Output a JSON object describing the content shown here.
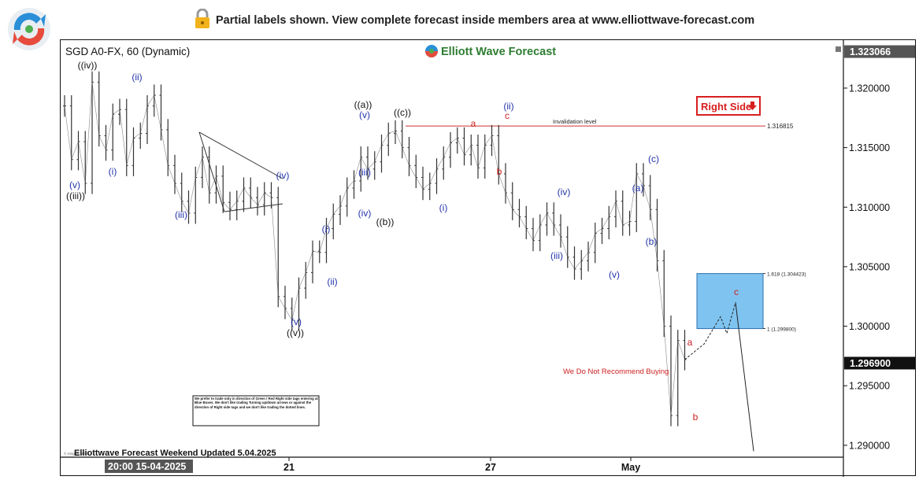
{
  "banner": {
    "text": "Partial labels shown. View complete forecast inside members area at www.elliottwave-forecast.com",
    "lock_icon": "lock-icon",
    "logo_icon": "elliottwave-logo-icon"
  },
  "chart_data": {
    "type": "line",
    "title": "SGD A0-FX, 60 (Dynamic)",
    "brand": "Elliott Wave Forecast",
    "footer": "Elliottwave Forecast Weekend Updated 5.04.2025",
    "copyright": "© eSignal, 2025",
    "ylim": [
      1.289,
      1.3235
    ],
    "y_ticks": [
      "1.320000",
      "1.315000",
      "1.310000",
      "1.305000",
      "1.300000",
      "1.295000",
      "1.290000"
    ],
    "y_tick_values": [
      1.32,
      1.315,
      1.31,
      1.305,
      1.3,
      1.295,
      1.29
    ],
    "current_price_top": "1.323066",
    "current_price": "1.296900",
    "current_price_value": 1.2969,
    "x_labels": [
      "20:00 15-04-2025",
      "21",
      "27",
      "May"
    ],
    "invalidation": {
      "label": "Invalidation level",
      "value_label": "1.316815",
      "value": 1.316815
    },
    "blue_box": {
      "top_label": "1.618 (1.304423)",
      "top": 1.304423,
      "bottom_label": "1 (1.299800)",
      "bottom": 1.2998
    },
    "right_side": "Right Side",
    "note_red": "We Do Not Recommend Buying",
    "disclaimer": "We prefer to trade only in direction of Green / Red Right side tags entering at Blue Boxes. We don't like trading Turning up/down arrows or against the direction of Right side tags and we don't like trading the dotted lines.",
    "series": [
      {
        "values": [
          1.3185,
          1.314,
          1.3155,
          1.312,
          1.3205,
          1.316,
          1.3148,
          1.3178,
          1.3182,
          1.3135,
          1.3158,
          1.3162,
          1.3185,
          1.3194,
          1.3165,
          1.3135,
          1.312,
          1.3105,
          1.3095,
          1.3125,
          1.3142,
          1.3112,
          1.3126,
          1.3104,
          1.3098,
          1.3105,
          1.3116,
          1.3108,
          1.3102,
          1.3112,
          1.3108,
          1.3025,
          1.3015,
          1.3005,
          1.3032,
          1.3045,
          1.3063,
          1.3062,
          1.3082,
          1.3094,
          1.3101,
          1.3116,
          1.3122,
          1.3142,
          1.3132,
          1.3138,
          1.3152,
          1.3162,
          1.3164,
          1.315,
          1.3135,
          1.3125,
          1.3115,
          1.312,
          1.3132,
          1.3142,
          1.3154,
          1.3158,
          1.3144,
          1.3152,
          1.3133,
          1.3152,
          1.316,
          1.3128,
          1.3112,
          1.3098,
          1.3092,
          1.3082,
          1.3072,
          1.3085,
          1.3095,
          1.3085,
          1.3075,
          1.3058,
          1.3048,
          1.3055,
          1.3062,
          1.3078,
          1.3082,
          1.3092,
          1.3105,
          1.3085,
          1.3088,
          1.3128,
          1.3118,
          1.3098,
          1.3055,
          1.3,
          1.2925,
          1.2988,
          1.2972
        ],
        "projection": [
          1.2972,
          1.2985,
          1.3008,
          1.2994,
          1.302,
          1.2895
        ]
      }
    ],
    "wave_labels": [
      {
        "text": "((iv))",
        "color": "#111111"
      },
      {
        "text": "(ii)",
        "color": "#2233aa"
      },
      {
        "text": "(i)",
        "color": "#2233aa"
      },
      {
        "text": "(v)",
        "color": "#2233aa"
      },
      {
        "text": "((iii))",
        "color": "#111111"
      },
      {
        "text": "(iii)",
        "color": "#2233aa"
      },
      {
        "text": "(iv)",
        "color": "#2233aa"
      },
      {
        "text": "(v)",
        "color": "#2233aa"
      },
      {
        "text": "((v))",
        "color": "#111111"
      },
      {
        "text": "(i)",
        "color": "#2233aa"
      },
      {
        "text": "(ii)",
        "color": "#2233aa"
      },
      {
        "text": "(iii)",
        "color": "#2233aa"
      },
      {
        "text": "(iv)",
        "color": "#2233aa"
      },
      {
        "text": "((a))",
        "color": "#111111"
      },
      {
        "text": "(v)",
        "color": "#2233aa"
      },
      {
        "text": "((b))",
        "color": "#111111"
      },
      {
        "text": "((c))",
        "color": "#111111"
      },
      {
        "text": "(i)",
        "color": "#2233aa"
      },
      {
        "text": "a",
        "color": "#cc2222"
      },
      {
        "text": "(ii)",
        "color": "#2233aa"
      },
      {
        "text": "c",
        "color": "#cc2222"
      },
      {
        "text": "b",
        "color": "#cc2222"
      },
      {
        "text": "(iii)",
        "color": "#2233aa"
      },
      {
        "text": "(iv)",
        "color": "#2233aa"
      },
      {
        "text": "(v)",
        "color": "#2233aa"
      },
      {
        "text": "(a)",
        "color": "#2233aa"
      },
      {
        "text": "(b)",
        "color": "#2233aa"
      },
      {
        "text": "(c)",
        "color": "#2233aa"
      },
      {
        "text": "a",
        "color": "#cc2222"
      },
      {
        "text": "b",
        "color": "#cc2222"
      },
      {
        "text": "c",
        "color": "#cc2222"
      }
    ],
    "colors": {
      "price": "#555555",
      "invalidation": "#cc3333",
      "box": "#7fc4f0",
      "box_border": "#2b6fb0",
      "red": "#cc2222",
      "blue": "#2233aa"
    }
  }
}
